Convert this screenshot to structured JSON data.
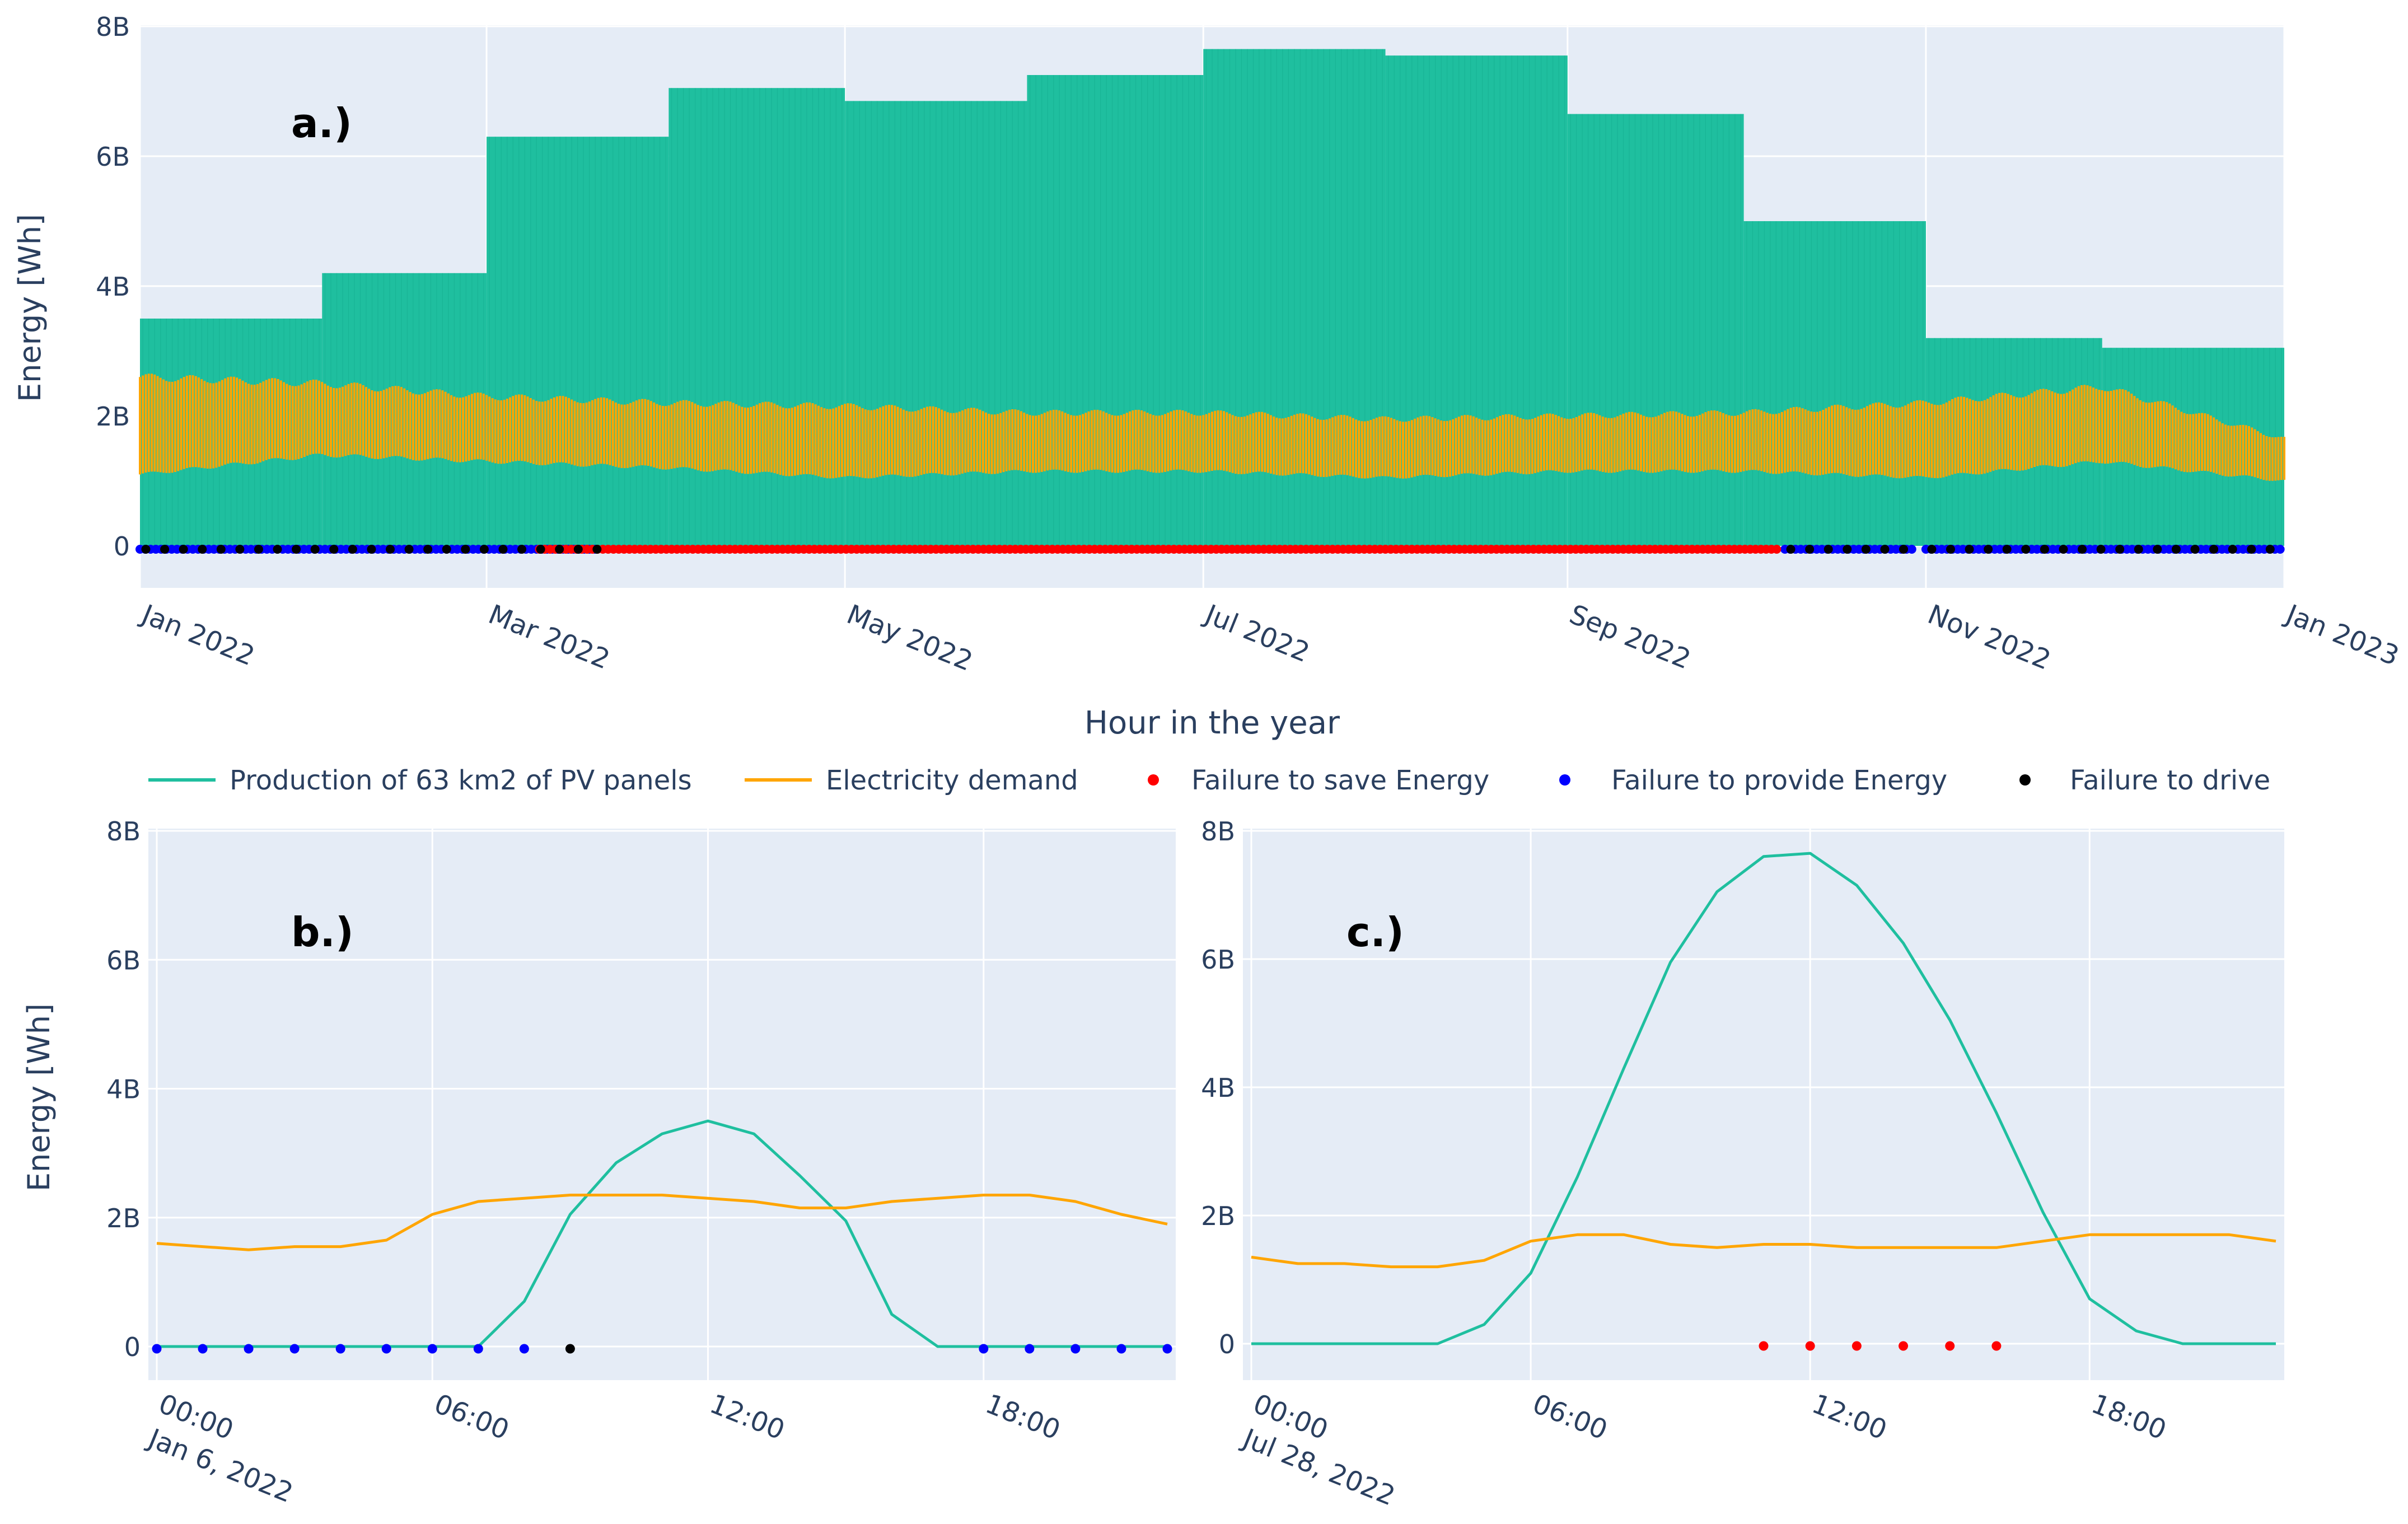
{
  "colors": {
    "production": "#1fbf9f",
    "demand": "#ffa500",
    "fail_save": "#ff0000",
    "fail_provide": "#0000ff",
    "fail_drive": "#000000",
    "plot_bg": "#e5ecf6",
    "grid": "#ffffff",
    "tick_text": "#2a3f5f"
  },
  "legend": {
    "production": "Production of 63 km2 of PV panels",
    "demand": "Electricity demand",
    "fail_save": "Failure to save Energy",
    "fail_provide": "Failure to provide Energy",
    "fail_drive": "Failure to drive"
  },
  "chart_data": [
    {
      "panel_label": "a.)",
      "type": "area",
      "xlabel": "Hour in the year",
      "ylabel": "Energy [Wh]",
      "ylim": [
        0,
        8000000000
      ],
      "yticks": [
        "0",
        "2B",
        "4B",
        "6B",
        "8B"
      ],
      "xlim": [
        "2022-01-01",
        "2023-01-01"
      ],
      "xtick_labels": [
        "Jan 2022",
        "Mar 2022",
        "May 2022",
        "Jul 2022",
        "Sep 2022",
        "Nov 2022",
        "Jan 2023"
      ],
      "xtick_dates": [
        "2022-01-01",
        "2022-03-01",
        "2022-05-01",
        "2022-07-01",
        "2022-09-01",
        "2022-11-01",
        "2023-01-01"
      ],
      "production_monthly_peak": {
        "months": [
          "Jan",
          "Feb",
          "Mar",
          "Apr",
          "May",
          "Jun",
          "Jul",
          "Aug",
          "Sep",
          "Oct",
          "Nov",
          "Dec"
        ],
        "values": [
          3500000000,
          4200000000,
          6300000000,
          7050000000,
          6850000000,
          7250000000,
          7650000000,
          7550000000,
          6650000000,
          5000000000,
          3200000000,
          3050000000
        ]
      },
      "demand_envelope": {
        "dates": [
          "2022-01-01",
          "2022-02-01",
          "2022-03-01",
          "2022-04-01",
          "2022-05-01",
          "2022-06-01",
          "2022-07-01",
          "2022-08-01",
          "2022-09-01",
          "2022-10-01",
          "2022-11-01",
          "2022-12-01",
          "2023-01-01"
        ],
        "low": [
          1100000000,
          1400000000,
          1300000000,
          1200000000,
          1050000000,
          1150000000,
          1150000000,
          1050000000,
          1150000000,
          1150000000,
          1050000000,
          1300000000,
          1000000000
        ],
        "high": [
          2600000000,
          2500000000,
          2300000000,
          2200000000,
          2150000000,
          2050000000,
          2050000000,
          1950000000,
          2000000000,
          2050000000,
          2200000000,
          2450000000,
          1650000000
        ]
      },
      "failure_periods": {
        "fail_provide": [
          [
            "2022-01-01",
            "2022-03-20"
          ],
          [
            "2022-10-08",
            "2022-10-30"
          ],
          [
            "2022-11-01",
            "2023-01-01"
          ]
        ],
        "fail_save": [
          [
            "2022-03-10",
            "2022-10-07"
          ]
        ],
        "fail_drive": [
          [
            "2022-01-01",
            "2022-03-20"
          ],
          [
            "2022-10-08",
            "2022-10-30"
          ],
          [
            "2022-11-01",
            "2023-01-01"
          ]
        ]
      }
    },
    {
      "panel_label": "b.)",
      "type": "line",
      "ylabel": "Energy [Wh]",
      "ylim": [
        0,
        8000000000
      ],
      "yticks": [
        "0",
        "2B",
        "4B",
        "6B",
        "8B"
      ],
      "xtick_labels": [
        "00:00",
        "06:00",
        "12:00",
        "18:00"
      ],
      "xtick_sub": [
        "Jan 6, 2022",
        "",
        "",
        ""
      ],
      "x": [
        0,
        1,
        2,
        3,
        4,
        5,
        6,
        7,
        8,
        9,
        10,
        11,
        12,
        13,
        14,
        15,
        16,
        17,
        18,
        19,
        20,
        21,
        22
      ],
      "series": [
        {
          "name": "Production of 63 km2 of PV panels",
          "values": [
            0,
            0,
            0,
            0,
            0,
            0,
            0,
            0,
            700000000,
            2050000000,
            2850000000,
            3300000000,
            3500000000,
            3300000000,
            2650000000,
            1950000000,
            500000000,
            0,
            0,
            0,
            0,
            0,
            0
          ]
        },
        {
          "name": "Electricity demand",
          "values": [
            1600000000,
            1550000000,
            1500000000,
            1550000000,
            1550000000,
            1650000000,
            2050000000,
            2250000000,
            2300000000,
            2350000000,
            2350000000,
            2350000000,
            2300000000,
            2250000000,
            2150000000,
            2150000000,
            2250000000,
            2300000000,
            2350000000,
            2350000000,
            2250000000,
            2050000000,
            1900000000
          ]
        }
      ],
      "markers": {
        "fail_provide": [
          0,
          1,
          2,
          3,
          4,
          5,
          6,
          7,
          8,
          18,
          19,
          20,
          21,
          22
        ],
        "fail_save": [],
        "fail_drive": [
          9
        ]
      }
    },
    {
      "panel_label": "c.)",
      "type": "line",
      "ylim": [
        0,
        8000000000
      ],
      "yticks": [
        "0",
        "2B",
        "4B",
        "6B",
        "8B"
      ],
      "xtick_labels": [
        "00:00",
        "06:00",
        "12:00",
        "18:00"
      ],
      "xtick_sub": [
        "Jul 28, 2022",
        "",
        "",
        ""
      ],
      "x": [
        0,
        1,
        2,
        3,
        4,
        5,
        6,
        7,
        8,
        9,
        10,
        11,
        12,
        13,
        14,
        15,
        16,
        17,
        18,
        19,
        20,
        21,
        22
      ],
      "series": [
        {
          "name": "Production of 63 km2 of PV panels",
          "values": [
            0,
            0,
            0,
            0,
            0,
            300000000,
            1100000000,
            2600000000,
            4300000000,
            5950000000,
            7050000000,
            7600000000,
            7650000000,
            7150000000,
            6250000000,
            5050000000,
            3600000000,
            2050000000,
            700000000,
            200000000,
            0,
            0,
            0
          ]
        },
        {
          "name": "Electricity demand",
          "values": [
            1350000000,
            1250000000,
            1250000000,
            1200000000,
            1200000000,
            1300000000,
            1600000000,
            1700000000,
            1700000000,
            1550000000,
            1500000000,
            1550000000,
            1550000000,
            1500000000,
            1500000000,
            1500000000,
            1500000000,
            1600000000,
            1700000000,
            1700000000,
            1700000000,
            1700000000,
            1600000000
          ]
        }
      ],
      "markers": {
        "fail_provide": [],
        "fail_save": [
          11,
          12,
          13,
          14,
          15,
          16
        ],
        "fail_drive": []
      }
    }
  ]
}
